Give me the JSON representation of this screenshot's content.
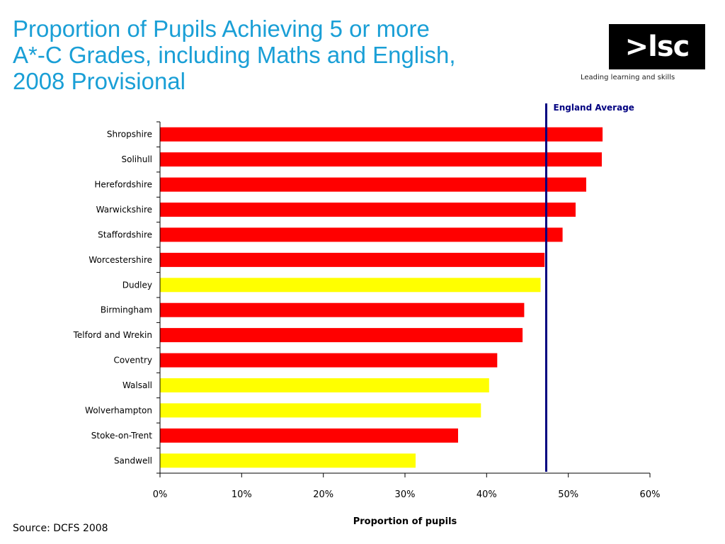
{
  "title_lines": [
    "Proportion of Pupils Achieving 5 or more",
    "A*-C Grades, including Maths and English,",
    "2008 Provisional"
  ],
  "logo": {
    "mark": ">lsc",
    "tagline": "Leading learning and skills"
  },
  "source": "Source: DCFS 2008",
  "chart_data": {
    "type": "bar",
    "orientation": "horizontal",
    "title": "Proportion of Pupils Achieving 5 or more A*-C Grades, including Maths and English, 2008 Provisional",
    "xlabel": "Proportion of pupils",
    "ylabel": "",
    "xlim": [
      0,
      60
    ],
    "x_ticks": [
      "0%",
      "10%",
      "20%",
      "30%",
      "40%",
      "50%",
      "60%"
    ],
    "grid": false,
    "categories": [
      "Shropshire",
      "Solihull",
      "Herefordshire",
      "Warwickshire",
      "Staffordshire",
      "Worcestershire",
      "Dudley",
      "Birmingham",
      "Telford and Wrekin",
      "Coventry",
      "Walsall",
      "Wolverhampton",
      "Stoke-on-Trent",
      "Sandwell"
    ],
    "values": [
      54.2,
      54.1,
      52.2,
      50.9,
      49.3,
      47.1,
      46.6,
      44.6,
      44.4,
      41.3,
      40.3,
      39.3,
      36.5,
      31.3
    ],
    "bar_colors": [
      "#ff0000",
      "#ff0000",
      "#ff0000",
      "#ff0000",
      "#ff0000",
      "#ff0000",
      "#ffff00",
      "#ff0000",
      "#ff0000",
      "#ff0000",
      "#ffff00",
      "#ffff00",
      "#ff0000",
      "#ffff00"
    ],
    "reference_line": {
      "label": "England Average",
      "value": 47.3,
      "color": "#000080"
    },
    "colors": {
      "red": "#ff0000",
      "yellow": "#ffff00",
      "axis": "#000000"
    }
  }
}
